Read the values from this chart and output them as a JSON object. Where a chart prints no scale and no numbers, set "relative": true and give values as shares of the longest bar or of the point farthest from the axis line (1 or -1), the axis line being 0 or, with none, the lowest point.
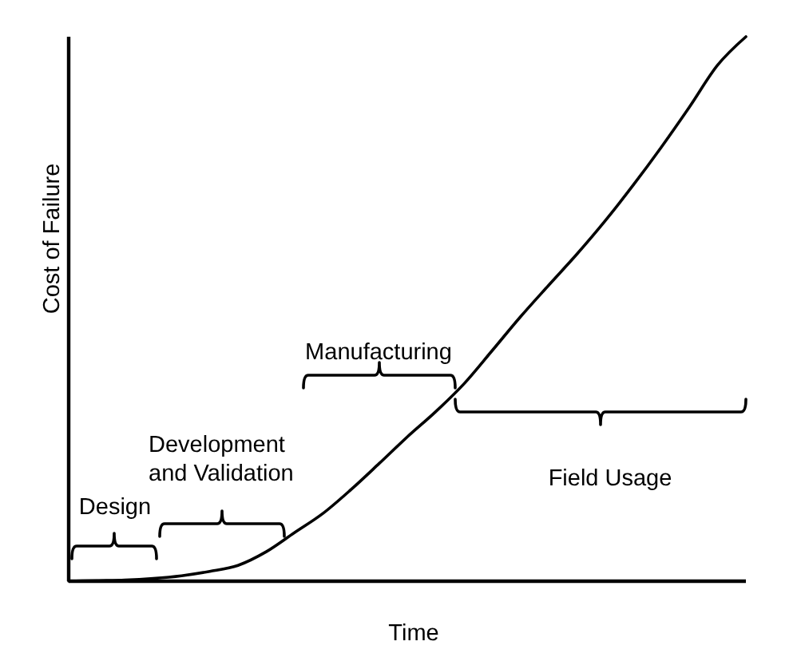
{
  "chart_data": {
    "type": "line",
    "xlabel": "Time",
    "ylabel": "Cost of Failure",
    "relative": true,
    "categories": [
      null,
      null,
      null,
      null,
      null,
      null,
      null,
      null,
      null,
      null,
      null,
      null,
      null,
      null,
      null,
      null,
      null,
      null,
      null,
      null,
      null,
      null,
      null,
      null,
      null
    ],
    "values": [
      0,
      0.001,
      0.002,
      0.005,
      0.01,
      0.018,
      0.029,
      0.054,
      0.089,
      0.124,
      0.168,
      0.216,
      0.265,
      0.311,
      0.362,
      0.423,
      0.485,
      0.543,
      0.6,
      0.661,
      0.727,
      0.797,
      0.871,
      0.948,
      1
    ],
    "color": "#000000",
    "annotations": [
      "Design",
      "Development and Validation",
      "Manufacturing",
      "Field Usage"
    ]
  }
}
